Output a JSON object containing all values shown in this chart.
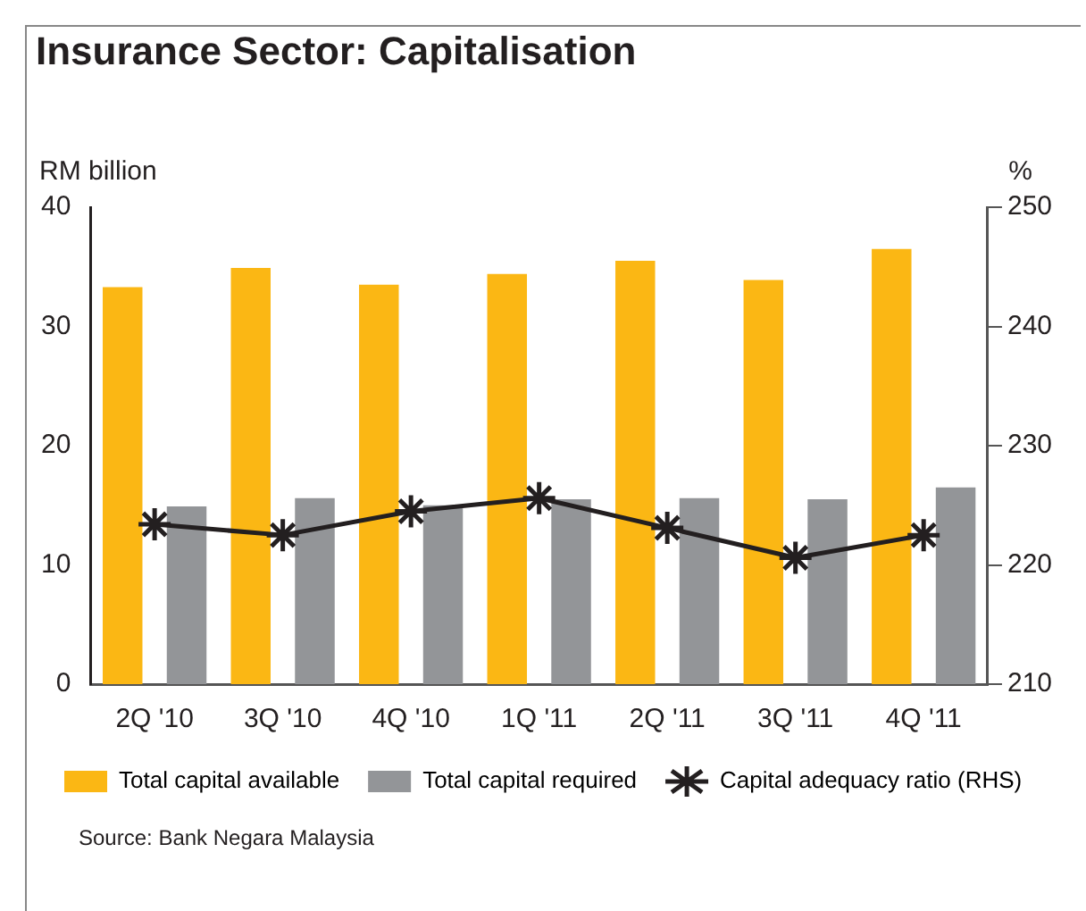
{
  "chart_data": {
    "type": "bar",
    "title": "Insurance Sector: Capitalisation",
    "ylabel": "RM billion",
    "y2label": "%",
    "categories": [
      "2Q '10",
      "3Q '10",
      "4Q '10",
      "1Q '11",
      "2Q '11",
      "3Q '11",
      "4Q '11"
    ],
    "series": [
      {
        "name": "Total capital available",
        "color": "#fbb714",
        "values": [
          33.3,
          34.9,
          33.5,
          34.4,
          35.5,
          33.9,
          36.5
        ]
      },
      {
        "name": "Total capital required",
        "color": "#939598",
        "values": [
          14.9,
          15.6,
          15.0,
          15.5,
          15.6,
          15.5,
          16.5
        ]
      },
      {
        "name": "Capital adequacy ratio (RHS)",
        "type": "line",
        "axis": "y2",
        "color": "#231f20",
        "marker": "cross",
        "values": [
          223.4,
          222.5,
          224.5,
          225.6,
          223.1,
          220.6,
          222.5
        ]
      }
    ],
    "ylim": [
      0,
      40
    ],
    "yticks": [
      0,
      10,
      20,
      30,
      40
    ],
    "y2lim": [
      210,
      250
    ],
    "y2ticks": [
      210,
      220,
      230,
      240,
      250
    ],
    "grid": false,
    "legend": "bottom",
    "annotations": [
      "Source: Bank Negara Malaysia"
    ]
  }
}
